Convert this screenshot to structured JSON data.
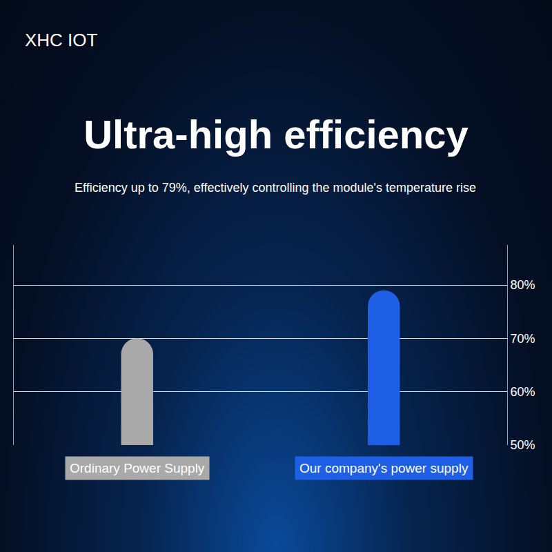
{
  "chart_data": {
    "type": "bar",
    "brand": "XHC IOT",
    "title": "Ultra-high efficiency",
    "subtitle": "Efficiency up to 79%, effectively controlling the module's temperature rise",
    "categories": [
      "Ordinary Power Supply",
      "Our company's power supply"
    ],
    "values": [
      70,
      79
    ],
    "colors": [
      "#a9a9a9",
      "#1f5fe6"
    ],
    "ylim": [
      50,
      87.5
    ],
    "yticks": [
      {
        "value": 50,
        "label": "50%"
      },
      {
        "value": 60,
        "label": "60%"
      },
      {
        "value": 70,
        "label": "70%"
      },
      {
        "value": 80,
        "label": "80%"
      }
    ],
    "grid": true
  }
}
